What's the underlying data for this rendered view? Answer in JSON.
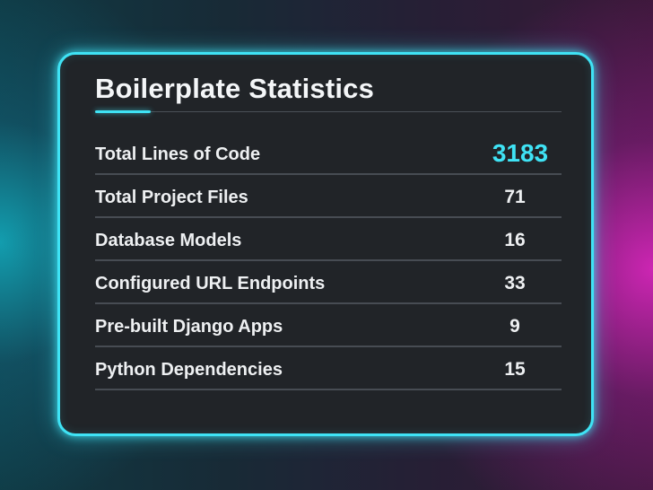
{
  "card": {
    "title": "Boilerplate Statistics",
    "accent_color": "#3fe3f5",
    "rows": [
      {
        "label": "Total Lines of Code",
        "value": "3183"
      },
      {
        "label": "Total Project Files",
        "value": "71"
      },
      {
        "label": "Database Models",
        "value": "16"
      },
      {
        "label": "Configured URL Endpoints",
        "value": "33"
      },
      {
        "label": "Pre-built Django Apps",
        "value": "9"
      },
      {
        "label": "Python Dependencies",
        "value": "15"
      }
    ]
  }
}
